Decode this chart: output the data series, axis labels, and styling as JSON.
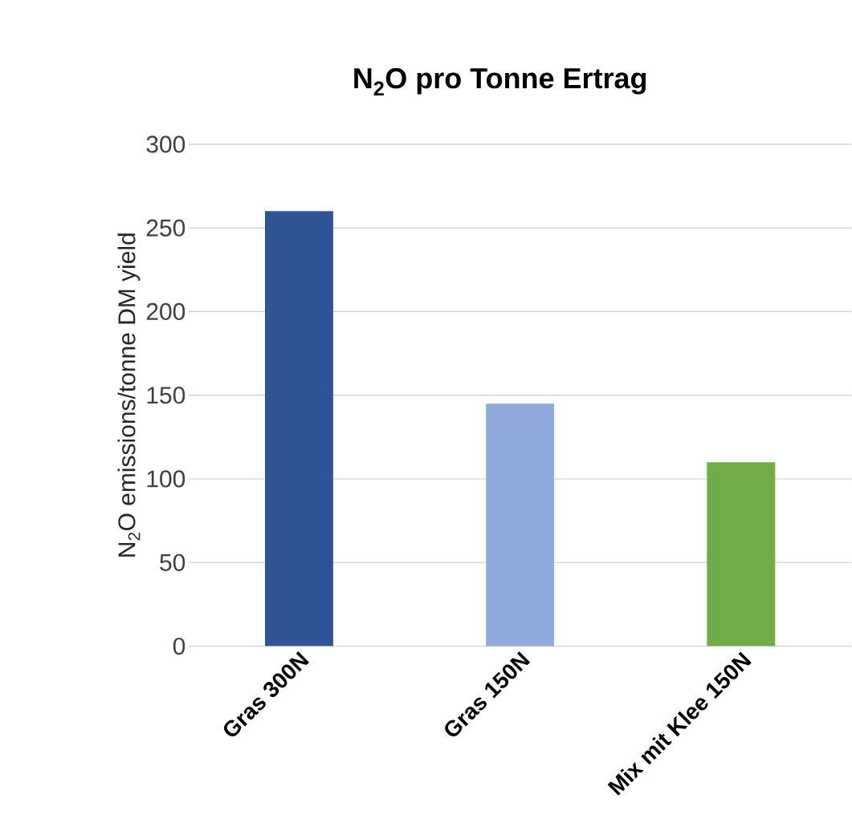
{
  "chart_data": {
    "type": "bar",
    "title": "N$_{2}$O pro Tonne Ertrag",
    "ylabel": "N$_{2}$O emissions/tonne DM yield",
    "categories": [
      "Gras 300N",
      "Gras 150N",
      "Mix mit Klee 150N"
    ],
    "values": [
      260,
      145,
      110
    ],
    "colors": [
      "#2f5597",
      "#8faadc",
      "#70ad47"
    ],
    "ylim": [
      0,
      300
    ],
    "yticks": [
      0,
      50,
      100,
      150,
      200,
      250,
      300
    ],
    "grid": "y"
  }
}
